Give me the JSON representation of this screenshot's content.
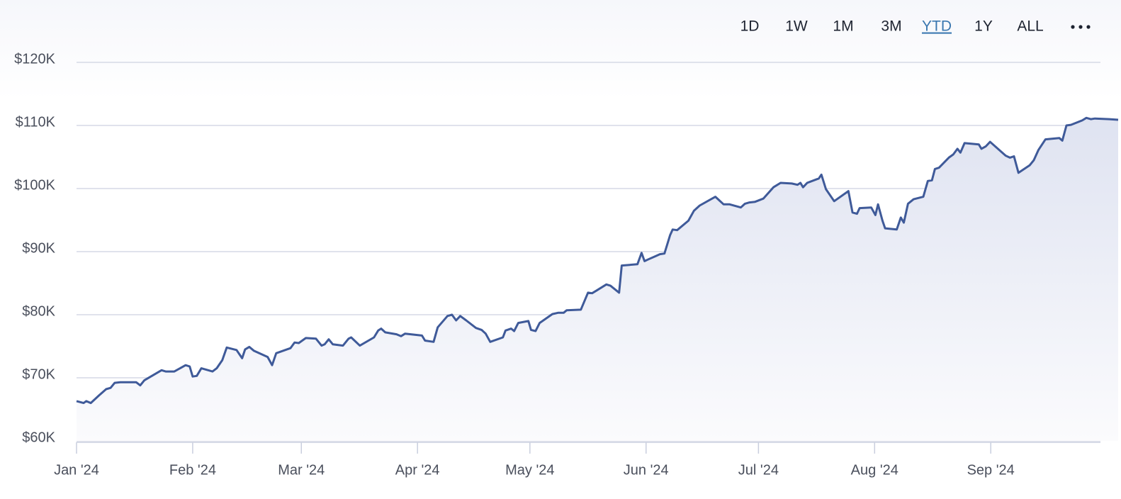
{
  "range_buttons": [
    "1D",
    "1W",
    "1M",
    "3M",
    "YTD",
    "1Y",
    "ALL"
  ],
  "selected_range_index": 4,
  "chart_data": {
    "type": "area",
    "color": "#3f5a99",
    "grid": true,
    "xlim": [
      0,
      278
    ],
    "ylim": [
      60000,
      120000
    ],
    "yticks": [
      {
        "value": 60000,
        "label": "$60K"
      },
      {
        "value": 70000,
        "label": "$70K"
      },
      {
        "value": 80000,
        "label": "$80K"
      },
      {
        "value": 90000,
        "label": "$90K"
      },
      {
        "value": 100000,
        "label": "$100K"
      },
      {
        "value": 110000,
        "label": "$110K"
      },
      {
        "value": 120000,
        "label": "$120K"
      }
    ],
    "xticks": [
      {
        "value": 0,
        "label": "Jan '24"
      },
      {
        "value": 31,
        "label": "Feb '24"
      },
      {
        "value": 60,
        "label": "Mar '24"
      },
      {
        "value": 91,
        "label": "Apr '24"
      },
      {
        "value": 121,
        "label": "May '24"
      },
      {
        "value": 152,
        "label": "Jun '24"
      },
      {
        "value": 182,
        "label": "Jul '24"
      },
      {
        "value": 213,
        "label": "Aug '24"
      },
      {
        "value": 244,
        "label": "Sep '24"
      }
    ],
    "x": [
      0,
      1.9,
      2.6,
      3.8,
      6.0,
      7.9,
      9.1,
      10.2,
      11.7,
      15.9,
      17.0,
      18.1,
      22.7,
      23.8,
      26.1,
      29.1,
      30.2,
      31.0,
      32.1,
      33.3,
      36.3,
      37.4,
      38.9,
      40.1,
      42.7,
      44.2,
      45.0,
      46.1,
      47.3,
      51.0,
      52.2,
      53.3,
      57.1,
      58.2,
      59.3,
      61.2,
      63.9,
      65.4,
      66.2,
      67.3,
      68.4,
      71.1,
      72.6,
      73.3,
      75.6,
      79.4,
      80.5,
      81.3,
      82.4,
      85.4,
      86.6,
      87.7,
      92.2,
      93.0,
      95.3,
      96.4,
      99.0,
      100.2,
      101.3,
      102.4,
      104.0,
      106.6,
      108.1,
      109.2,
      110.4,
      113.8,
      114.5,
      116.0,
      116.8,
      117.9,
      120.6,
      121.3,
      122.5,
      123.6,
      127.0,
      128.5,
      130.0,
      130.8,
      134.6,
      136.5,
      137.6,
      138.7,
      141.4,
      142.5,
      144.8,
      145.5,
      149.7,
      150.8,
      151.6,
      152.7,
      154.6,
      155.7,
      156.9,
      158.4,
      159.1,
      160.3,
      163.3,
      164.8,
      166.3,
      170.5,
      172.7,
      174.3,
      177.3,
      178.4,
      179.6,
      181.1,
      183.3,
      186.0,
      187.9,
      190.9,
      192.4,
      193.2,
      193.9,
      195.0,
      198.1,
      198.8,
      200.0,
      202.2,
      206.0,
      207.1,
      208.3,
      209.0,
      212.1,
      213.2,
      213.9,
      215.1,
      215.8,
      218.9,
      220.0,
      220.8,
      221.9,
      223.4,
      226.0,
      227.2,
      228.3,
      229.1,
      230.2,
      232.8,
      234.0,
      235.1,
      235.9,
      237.0,
      240.8,
      241.5,
      242.7,
      243.8,
      248.0,
      249.1,
      250.2,
      251.4,
      254.4,
      255.5,
      256.7,
      258.6,
      262.3,
      263.1,
      264.2,
      265.4,
      268.4,
      269.5,
      270.7,
      271.8,
      275.6,
      278
    ],
    "values": [
      66300,
      66000,
      66300,
      66000,
      67200,
      68200,
      68400,
      69200,
      69300,
      69300,
      68800,
      69600,
      71200,
      71000,
      71000,
      72000,
      71800,
      70200,
      70300,
      71500,
      71000,
      71500,
      72800,
      74800,
      74400,
      73100,
      74500,
      74900,
      74300,
      73300,
      72000,
      73900,
      74700,
      75600,
      75500,
      76300,
      76200,
      75100,
      75300,
      76100,
      75300,
      75100,
      76200,
      76400,
      75100,
      76400,
      77500,
      77800,
      77200,
      76900,
      76600,
      77000,
      76700,
      75900,
      75700,
      78000,
      79800,
      80000,
      79100,
      79800,
      79100,
      77900,
      77600,
      77000,
      75700,
      76400,
      77500,
      77800,
      77400,
      78700,
      79000,
      77600,
      77400,
      78700,
      80100,
      80300,
      80300,
      80700,
      80800,
      83500,
      83400,
      83800,
      84800,
      84600,
      83500,
      87800,
      88000,
      89800,
      88500,
      88800,
      89300,
      89600,
      89700,
      92600,
      93500,
      93400,
      94900,
      96500,
      97300,
      98700,
      97500,
      97500,
      97000,
      97600,
      97800,
      97900,
      98400,
      100200,
      100900,
      100800,
      100600,
      100900,
      100200,
      100900,
      101600,
      102200,
      99900,
      98000,
      99600,
      96200,
      96000,
      96900,
      97000,
      95800,
      97500,
      94900,
      93700,
      93500,
      95400,
      94600,
      97600,
      98300,
      98700,
      101200,
      101300,
      103100,
      103300,
      104900,
      105400,
      106300,
      105700,
      107200,
      107000,
      106300,
      106700,
      107400,
      105200,
      104900,
      105100,
      102500,
      103700,
      104500,
      106100,
      107800,
      108000,
      107600,
      110000,
      110100,
      110800,
      111200,
      111000,
      111100,
      111000,
      110900
    ]
  }
}
